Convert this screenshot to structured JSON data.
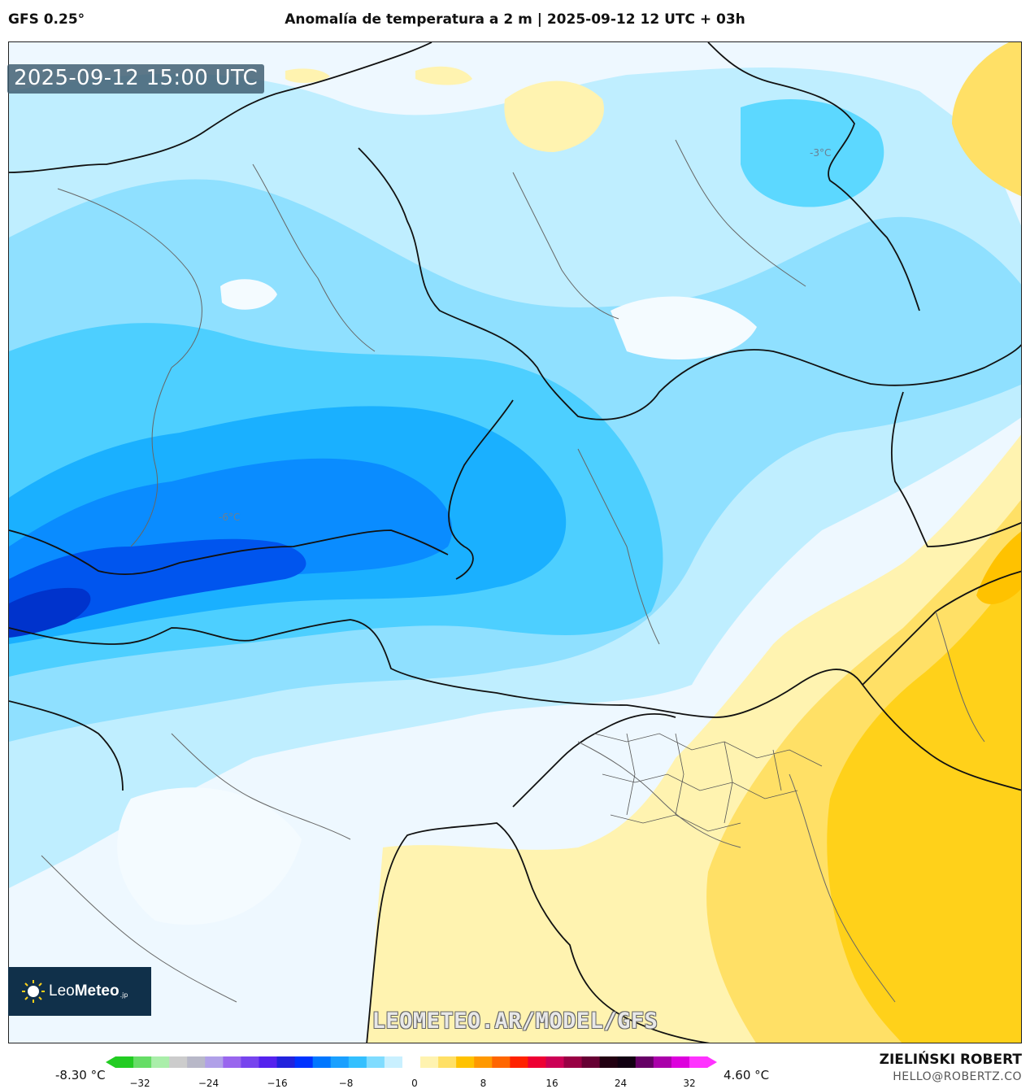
{
  "header": {
    "model": "GFS 0.25°",
    "title": "Anomalía de temperatura a 2 m | 2025-09-12 12 UTC + 03h"
  },
  "map": {
    "valid_time": "2025-09-12 15:00 UTC",
    "contour_labels": [
      "-3°C",
      "-6°C"
    ],
    "watermark": "LEOMETEO.AR/MODEL/GFS",
    "logo": {
      "name_light": "Leo",
      "name_bold": "Meteo",
      "suffix": ".jp",
      "icon": "sun-icon"
    }
  },
  "legend": {
    "min_label": "-8.30 °C",
    "max_label": "4.60 °C",
    "ticks": [
      "−32",
      "−24",
      "−16",
      "−8",
      "0",
      "8",
      "16",
      "24",
      "32"
    ],
    "colors": [
      "#22cc22",
      "#66dd66",
      "#aaeeaa",
      "#cccccc",
      "#b8b8c8",
      "#b0a0e8",
      "#9966ee",
      "#7744ee",
      "#5522ee",
      "#2222dd",
      "#0033ff",
      "#0077ff",
      "#1aa0ff",
      "#33c0ff",
      "#7fdcff",
      "#c9f0ff",
      "#ffffff",
      "#fff3b0",
      "#ffe066",
      "#ffc200",
      "#ff9900",
      "#ff6600",
      "#ff2200",
      "#ee0033",
      "#cc0055",
      "#990044",
      "#660033",
      "#220011",
      "#110011",
      "#660066",
      "#aa00aa",
      "#dd00dd",
      "#ff33ff"
    ]
  },
  "credits": {
    "author": "ZIELIŃSKI ROBERT",
    "email": "HELLO@ROBERTZ.CO"
  }
}
